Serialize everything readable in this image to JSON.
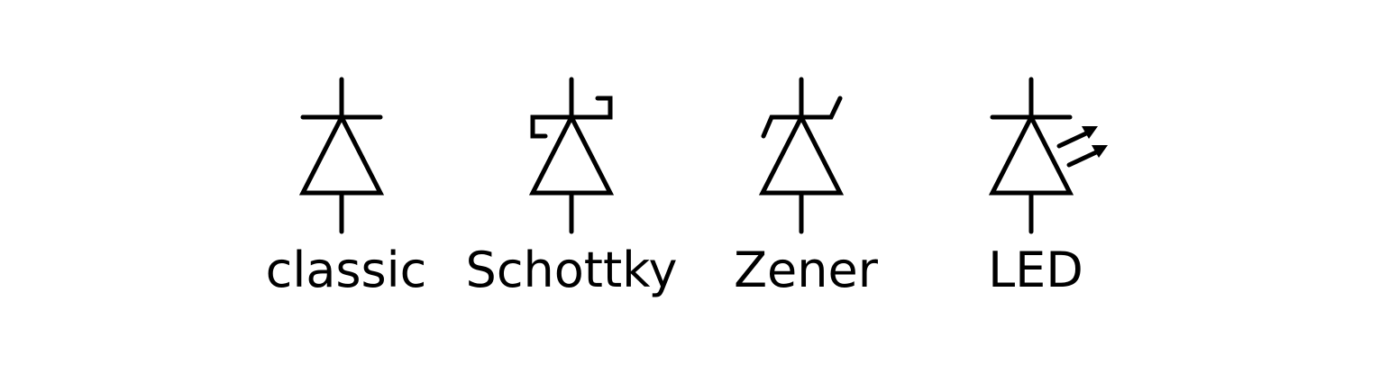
{
  "diagram": {
    "stroke_color": "#000000",
    "background_color": "#ffffff",
    "symbols": [
      {
        "id": "classic",
        "label": "classic",
        "icon": "diode-icon"
      },
      {
        "id": "schottky",
        "label": "Schottky",
        "icon": "schottky-diode-icon"
      },
      {
        "id": "zener",
        "label": "Zener",
        "icon": "zener-diode-icon"
      },
      {
        "id": "led",
        "label": "LED",
        "icon": "led-diode-icon"
      }
    ]
  }
}
